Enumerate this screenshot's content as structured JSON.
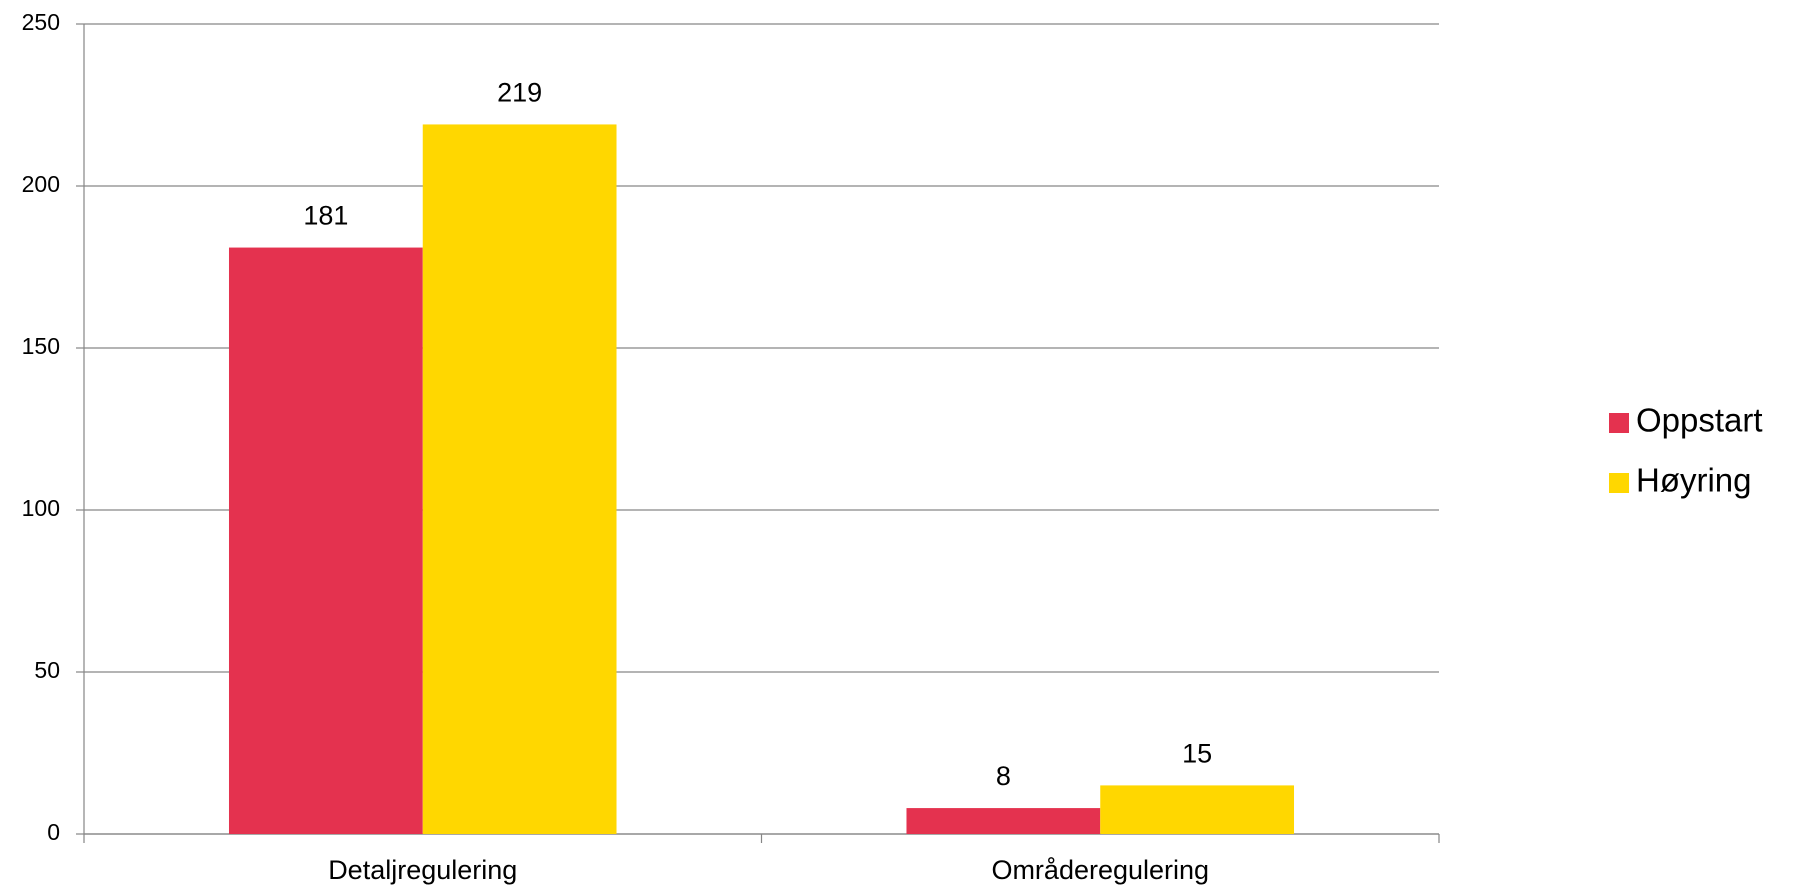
{
  "chart_data": {
    "type": "bar",
    "categories": [
      "Detaljregulering",
      "Områderegulering"
    ],
    "series": [
      {
        "name": "Oppstart",
        "color": "#e4324f",
        "values": [
          181,
          8
        ]
      },
      {
        "name": "Høyring",
        "color": "#ffd700",
        "values": [
          219,
          15
        ]
      }
    ],
    "ylim": [
      0,
      250
    ],
    "yticks": [
      0,
      50,
      100,
      150,
      200,
      250
    ],
    "grid": true,
    "legend": "right"
  }
}
